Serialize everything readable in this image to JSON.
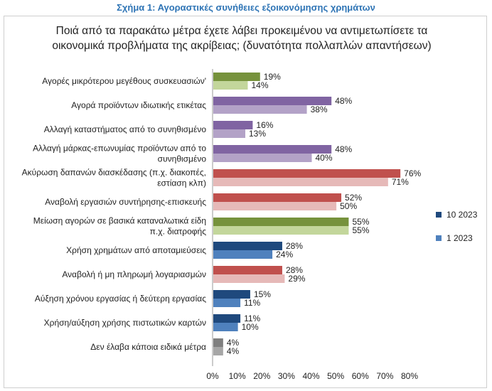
{
  "figure_title": "Σχήμα 1: Αγοραστικές συνήθειες εξοικονόμησης χρημάτων",
  "chart_data": {
    "type": "bar",
    "orientation": "horizontal",
    "title_lines": [
      "Ποιά από τα παρακάτω μέτρα έχετε λάβει προκειμένου να αντιμετωπίσετε τα",
      "οικονομικά προβλήματα της ακρίβειας; (δυνατότητα πολλαπλών απαντήσεων)"
    ],
    "categories": [
      [
        "Αγορές μικρότερου μεγέθους συσκευασιών'"
      ],
      [
        "Αγορά προϊόντων ιδιωτικής ετικέτας"
      ],
      [
        "Αλλαγή καταστήματος από το συνηθισμένο"
      ],
      [
        "Αλλαγή μάρκας-επωνυμίας προϊόντων από το",
        "συνηθισμένο"
      ],
      [
        "Ακύρωση δαπανών διασκέδασης (π.χ. διακοπές,",
        "εστίαση κλπ)"
      ],
      [
        "Αναβολή εργασιών συντήρησης-επισκευής"
      ],
      [
        "Μείωση αγορών σε βασικά καταναλωτικά είδη",
        "π.χ. διατροφής"
      ],
      [
        "Χρήση χρημάτων από αποταμιεύσεις"
      ],
      [
        "Αναβολή ή μη πληρωμή λογαριασμών"
      ],
      [
        "Αύξηση χρόνου εργασίας ή δεύτερη εργασίας"
      ],
      [
        "Χρήση/αύξηση χρήσης πιστωτικών καρτών"
      ],
      [
        "Δεν έλαβα κάποια ειδικά μέτρα"
      ]
    ],
    "series": [
      {
        "name": "10 2023",
        "values": [
          19,
          48,
          16,
          48,
          76,
          52,
          55,
          28,
          28,
          15,
          11,
          4
        ]
      },
      {
        "name": "1 2023",
        "values": [
          14,
          38,
          13,
          40,
          71,
          50,
          55,
          24,
          29,
          11,
          10,
          4
        ]
      }
    ],
    "value_labels": [
      [
        "19%",
        "48%",
        "16%",
        "48%",
        "76%",
        "52%",
        "55%",
        "28%",
        "28%",
        "15%",
        "11%",
        "4%"
      ],
      [
        "14%",
        "38%",
        "13%",
        "40%",
        "71%",
        "50%",
        "55%",
        "24%",
        "29%",
        "11%",
        "10%",
        "4%"
      ]
    ],
    "bar_colors": [
      [
        "#76923c",
        "#c3d69b"
      ],
      [
        "#8064a2",
        "#b3a2c7"
      ],
      [
        "#8064a2",
        "#b3a2c7"
      ],
      [
        "#8064a2",
        "#b3a2c7"
      ],
      [
        "#c0504d",
        "#e6b9b8"
      ],
      [
        "#c0504d",
        "#e6b9b8"
      ],
      [
        "#76923c",
        "#c3d69b"
      ],
      [
        "#1f497d",
        "#4f81bd"
      ],
      [
        "#c0504d",
        "#e6b9b8"
      ],
      [
        "#1f497d",
        "#4f81bd"
      ],
      [
        "#1f497d",
        "#4f81bd"
      ],
      [
        "#7f7f7f",
        "#a6a6a6"
      ]
    ],
    "legend_colors": [
      "#1f497d",
      "#4f81bd"
    ],
    "legend_position": "right",
    "xlim": [
      0,
      80
    ],
    "x_ticks": [
      0,
      10,
      20,
      30,
      40,
      50,
      60,
      70,
      80
    ],
    "x_tick_labels": [
      "0%",
      "10%",
      "20%",
      "30%",
      "40%",
      "50%",
      "60%",
      "70%",
      "80%"
    ],
    "grid": false
  }
}
